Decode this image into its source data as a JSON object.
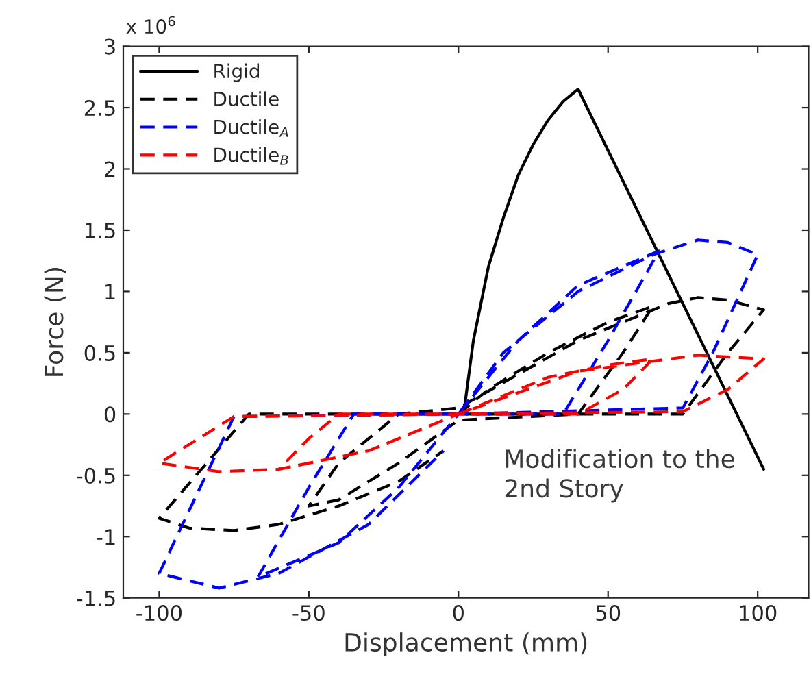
{
  "chart_data": {
    "type": "line",
    "xlabel": "Displacement (mm)",
    "ylabel": "Force (N)",
    "annotations": [
      "x 10$^{6}$",
      "Modification to the\n2nd Story"
    ],
    "xlim": [
      -112,
      117
    ],
    "xticks": [
      -100,
      -50,
      0,
      50,
      100
    ],
    "ylim": [
      -1.5,
      3
    ],
    "yticks": [
      -1.5,
      -1,
      -0.5,
      0,
      0.5,
      1,
      1.5,
      2,
      2.5,
      3
    ],
    "grid": false,
    "legend": "top left",
    "series": [
      {
        "name": "Rigid",
        "color": "#000000",
        "line_style": "solid",
        "x": [
          0,
          2,
          5,
          10,
          15,
          20,
          25,
          30,
          35,
          40,
          102
        ],
        "values": [
          0,
          0.05,
          0.6,
          1.2,
          1.6,
          1.95,
          2.2,
          2.4,
          2.55,
          2.65,
          -0.45
        ]
      },
      {
        "name": "Ductile",
        "color": "#000000",
        "line_style": "dashed",
        "x": [
          0,
          10,
          30,
          50,
          65,
          55,
          40,
          0,
          -20,
          -40,
          -50,
          -40,
          -20,
          0,
          40,
          60,
          70,
          80,
          90,
          102,
          90,
          75,
          0,
          -70,
          -100,
          -90,
          -75,
          -60,
          -40,
          -20,
          -5
        ],
        "values": [
          0,
          0.2,
          0.5,
          0.75,
          0.88,
          0.5,
          0,
          -0.05,
          -0.4,
          -0.7,
          -0.75,
          -0.4,
          0,
          0.05,
          0.6,
          0.8,
          0.9,
          0.95,
          0.93,
          0.85,
          0.5,
          0,
          0,
          0,
          -0.85,
          -0.93,
          -0.95,
          -0.9,
          -0.75,
          -0.55,
          -0.3
        ]
      },
      {
        "name": "Ductile$_{A}$",
        "color": "#0000ff",
        "line_style": "dashed",
        "x": [
          0,
          20,
          40,
          67,
          50,
          35,
          0,
          -20,
          -40,
          -67,
          -50,
          -35,
          0,
          15,
          40,
          65,
          80,
          90,
          100,
          85,
          75,
          0,
          -75,
          -100,
          -80,
          -60,
          -30,
          -5
        ],
        "values": [
          0,
          0.6,
          1.05,
          1.33,
          0.6,
          0,
          0,
          -0.6,
          -1.05,
          -1.33,
          -0.6,
          0,
          0,
          0.5,
          1.0,
          1.3,
          1.42,
          1.4,
          1.3,
          0.5,
          0.05,
          0,
          -0.02,
          -1.3,
          -1.42,
          -1.3,
          -0.9,
          -0.3
        ]
      },
      {
        "name": "Ductile$_{B}$",
        "color": "#ff0000",
        "line_style": "dashed",
        "x": [
          0,
          30,
          50,
          65,
          55,
          40,
          0,
          -30,
          -60,
          -50,
          -40,
          0,
          40,
          80,
          102,
          90,
          75,
          0,
          -75,
          -100,
          -80,
          -60,
          -30,
          -5
        ],
        "values": [
          0,
          0.3,
          0.4,
          0.45,
          0.2,
          0,
          0,
          -0.3,
          -0.45,
          -0.2,
          0,
          0,
          0.35,
          0.48,
          0.45,
          0.2,
          0.02,
          0,
          -0.02,
          -0.4,
          -0.47,
          -0.45,
          -0.3,
          -0.05
        ]
      }
    ]
  }
}
